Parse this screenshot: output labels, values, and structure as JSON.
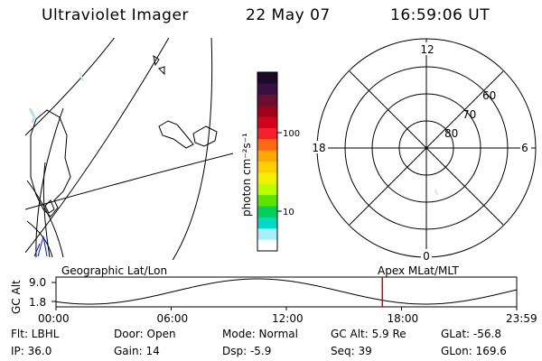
{
  "header": {
    "title": "Ultraviolet Imager",
    "date": "22 May 07",
    "time": "16:59:06 UT"
  },
  "colorbar": {
    "unit_label": "photon cm⁻²s⁻¹",
    "ticks": [
      "100",
      "10"
    ],
    "colors": [
      "#1b0a2a",
      "#3a0f3f",
      "#6a0f2f",
      "#a00018",
      "#d4001e",
      "#f5202a",
      "#ff6a10",
      "#ffaa00",
      "#ffd000",
      "#f3f000",
      "#b8ff00",
      "#5ae600",
      "#00d060",
      "#00d8c8",
      "#a8f0ff",
      "#ffffff"
    ]
  },
  "polar_plot": {
    "labels": {
      "top": "12",
      "left": "18",
      "right": "6",
      "bottom": "0"
    },
    "lat_labels": [
      "60",
      "70",
      "80"
    ]
  },
  "timeline": {
    "ylabel": "GC Alt",
    "ymax_label": "9.0",
    "ymin_label": "1.8",
    "left_title": "Geographic Lat/Lon",
    "right_title": "Apex MLat/MLT",
    "xticks": [
      "00:00",
      "06:00",
      "12:00",
      "18:00",
      "23:59"
    ],
    "marker_time_hours": 17.0,
    "marker_color": "#e00000"
  },
  "info": {
    "flt": "Flt: LBHL",
    "door": "Door: Open",
    "mode": "Mode: Normal",
    "gcalt": "GC Alt: 5.9 Re",
    "glat": "GLat: -56.8",
    "ip": "IP: 36.0",
    "gain": "Gain: 14",
    "dsp": "Dsp:   -5.9",
    "seq": "Seq: 39",
    "glon": "GLon: 169.6"
  }
}
